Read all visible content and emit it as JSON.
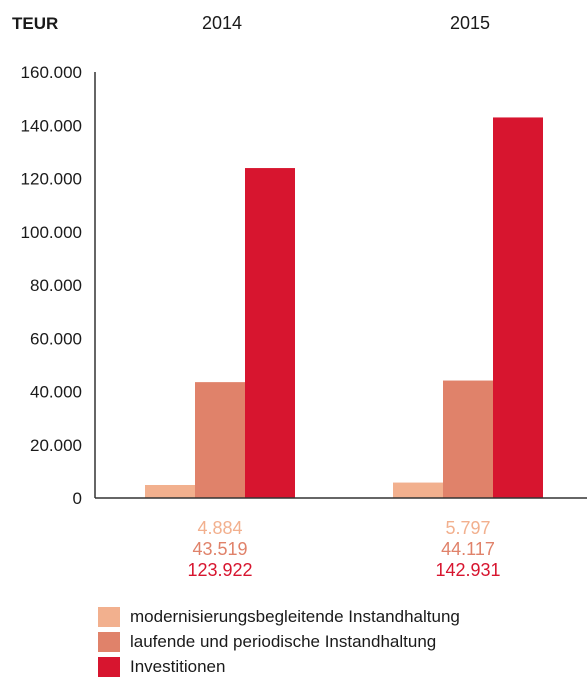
{
  "chart_data": {
    "type": "bar",
    "unit_label": "TEUR",
    "categories": [
      "2014",
      "2015"
    ],
    "series": [
      {
        "name": "modernisierungsbegleitende Instandhaltung",
        "color": "#f2b08e",
        "values": [
          4884,
          5797
        ],
        "labels": [
          "4.884",
          "5.797"
        ]
      },
      {
        "name": "laufende und periodische Instandhaltung",
        "color": "#e0826a",
        "values": [
          43519,
          44117
        ],
        "labels": [
          "43.519",
          "44.117"
        ]
      },
      {
        "name": "Investitionen",
        "color": "#d7152f",
        "values": [
          123922,
          142931
        ],
        "labels": [
          "123.922",
          "142.931"
        ]
      }
    ],
    "ylim": [
      0,
      160000
    ],
    "yticks": [
      0,
      20000,
      40000,
      60000,
      80000,
      100000,
      120000,
      140000,
      160000
    ],
    "ytick_labels": [
      "0",
      "20.000",
      "40.000",
      "60.000",
      "80.000",
      "100.000",
      "120.000",
      "140.000",
      "160.000"
    ],
    "legend_position": "bottom"
  }
}
